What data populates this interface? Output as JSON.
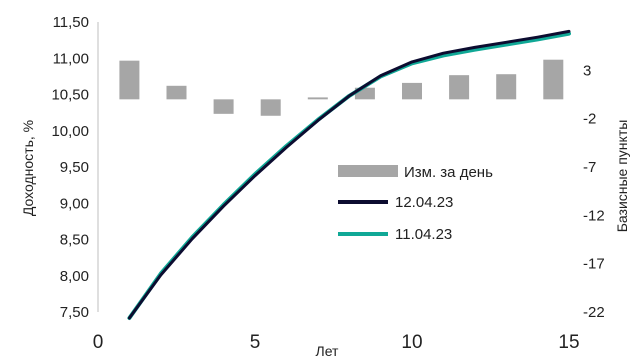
{
  "chart_data": {
    "type": "bar+line",
    "xlabel": "Лет",
    "ylabel": "Доходность, %",
    "y2label": "Базисные пункты",
    "xlim": [
      0,
      15
    ],
    "ylim": [
      7.5,
      11.5
    ],
    "y2lim": [
      -22,
      8
    ],
    "x_ticks": [
      "0",
      "5",
      "10",
      "15"
    ],
    "y_ticks": [
      "7,50",
      "8,00",
      "8,50",
      "9,00",
      "9,50",
      "10,00",
      "10,50",
      "11,00",
      "11,50"
    ],
    "y2_ticks": [
      "3",
      "-2",
      "-7",
      "-12",
      "-17",
      "-22"
    ],
    "y2_tick_values": [
      3,
      -2,
      -7,
      -12,
      -17,
      -22
    ],
    "grid": false,
    "legend_position": "center-right",
    "series": [
      {
        "name": "Изм. за день",
        "type": "bar",
        "axis": "y2",
        "color": "#a6a6a6",
        "x": [
          1,
          2.5,
          4,
          5.5,
          7,
          8.5,
          10,
          11.5,
          13,
          14.5
        ],
        "values": [
          4,
          1.4,
          -1.5,
          -1.7,
          0.2,
          1.2,
          1.7,
          2.5,
          2.6,
          4.1
        ]
      },
      {
        "name": "12.04.23",
        "type": "line",
        "axis": "y",
        "color": "#0c0c30",
        "x": [
          1,
          2,
          3,
          4,
          5,
          6,
          7,
          8,
          9,
          10,
          11,
          12,
          13,
          14,
          15
        ],
        "values": [
          7.47,
          8.01,
          8.51,
          8.96,
          9.38,
          9.77,
          10.14,
          10.48,
          10.76,
          10.95,
          11.07,
          11.15,
          11.22,
          11.29,
          11.37
        ]
      },
      {
        "name": "11.04.23",
        "type": "line",
        "axis": "y",
        "color": "#10a896",
        "x": [
          1,
          2,
          3,
          4,
          5,
          6,
          7,
          8,
          9,
          10,
          11,
          12,
          13,
          14,
          15
        ],
        "values": [
          7.49,
          8.03,
          8.53,
          8.98,
          9.4,
          9.79,
          10.15,
          10.48,
          10.75,
          10.93,
          11.04,
          11.12,
          11.19,
          11.26,
          11.34
        ]
      }
    ]
  }
}
